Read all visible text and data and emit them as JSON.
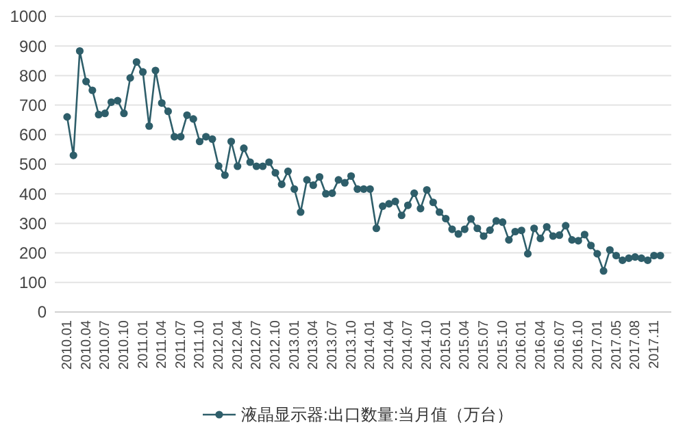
{
  "chart_data": {
    "type": "line",
    "categories": [
      "2010.01",
      null,
      null,
      "2010.04",
      null,
      null,
      "2010.07",
      null,
      null,
      "2010.10",
      null,
      null,
      "2011.01",
      null,
      null,
      "2011.04",
      null,
      null,
      "2011.07",
      null,
      null,
      "2011.10",
      null,
      null,
      "2012.01",
      null,
      null,
      "2012.04",
      null,
      null,
      "2012.07",
      null,
      null,
      "2012.10",
      null,
      null,
      "2013.01",
      null,
      null,
      "2013.04",
      null,
      null,
      "2013.07",
      null,
      null,
      "2013.10",
      null,
      null,
      "2014.01",
      null,
      null,
      "2014.04",
      null,
      null,
      "2014.07",
      null,
      null,
      "2014.10",
      null,
      null,
      "2015.01",
      null,
      null,
      "2015.04",
      null,
      null,
      "2015.07",
      null,
      null,
      "2015.10",
      null,
      null,
      "2016.01",
      null,
      null,
      "2016.04",
      null,
      null,
      "2016.07",
      null,
      null,
      "2016.10",
      null,
      null,
      "2017.01",
      null,
      null,
      "2017.05",
      null,
      null,
      "2017.08",
      null,
      null,
      "2017.11",
      null
    ],
    "series": [
      {
        "name": "液晶显示器:出口数量:当月值（万台）",
        "color": "#2e5e6a",
        "values": [
          660,
          530,
          883,
          780,
          750,
          668,
          672,
          710,
          715,
          672,
          792,
          846,
          812,
          629,
          817,
          707,
          679,
          593,
          593,
          666,
          653,
          577,
          593,
          585,
          494,
          463,
          577,
          493,
          554,
          507,
          493,
          493,
          507,
          471,
          432,
          476,
          416,
          338,
          447,
          429,
          457,
          400,
          402,
          447,
          437,
          460,
          416,
          416,
          416,
          283,
          358,
          366,
          374,
          327,
          361,
          402,
          350,
          413,
          371,
          338,
          316,
          280,
          264,
          280,
          315,
          283,
          257,
          277,
          308,
          304,
          244,
          272,
          276,
          197,
          283,
          249,
          288,
          257,
          260,
          292,
          244,
          241,
          262,
          225,
          197,
          139,
          210,
          191,
          175,
          182,
          186,
          182,
          175,
          191,
          191
        ]
      }
    ],
    "ylim": [
      0,
      1000
    ],
    "yticks": [
      0,
      100,
      200,
      300,
      400,
      500,
      600,
      700,
      800,
      900,
      1000
    ],
    "grid": "y",
    "legend": "bottom",
    "marker": "circle"
  }
}
